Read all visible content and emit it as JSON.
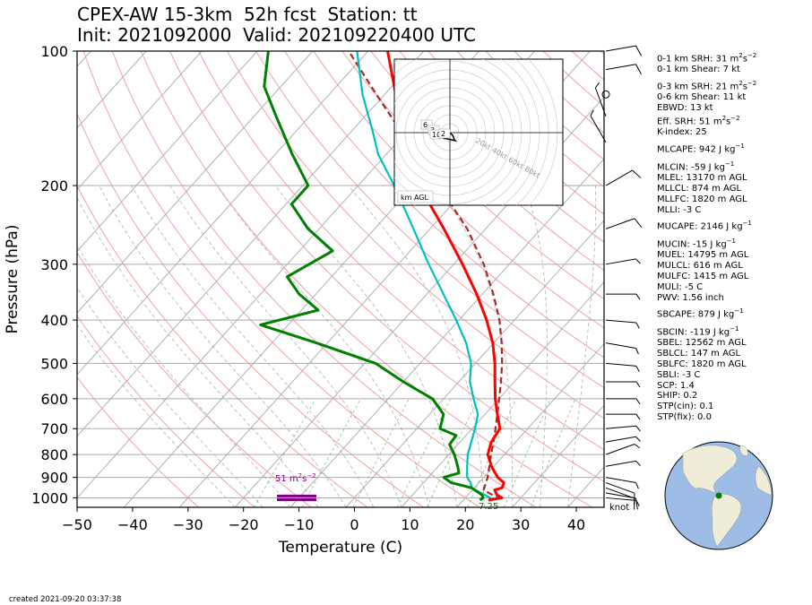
{
  "header": {
    "title_line1": "CPEX-AW 15-3km  52h fcst  Station: tt",
    "title_line2": "Init: 2021092000  Valid: 202109220400 UTC"
  },
  "footer": {
    "created": "created 2021-09-20 03:37:38"
  },
  "parameters": [
    {
      "label": "0-1 km SRH: 31 m",
      "sup": "2",
      "tail": "s",
      "sup2": "−2"
    },
    {
      "label": "0-1 km Shear: 7 kt"
    },
    {
      "label": "0-3 km SRH: 21 m",
      "sup": "2",
      "tail": "s",
      "sup2": "−2"
    },
    {
      "label": "0-6 km Shear: 11 kt"
    },
    {
      "label": "EBWD: 13 kt"
    },
    {
      "label": "Eff. SRH: 51 m",
      "sup": "2",
      "tail": "s",
      "sup2": "−2"
    },
    {
      "label": "K-index: 25"
    },
    {
      "label": "MLCAPE: 942 J kg",
      "sup": "−1"
    },
    {
      "label": "MLCIN: -59 J kg",
      "sup": "−1"
    },
    {
      "label": "MLEL: 13170 m AGL"
    },
    {
      "label": "MLLCL: 874 m AGL"
    },
    {
      "label": "MLLFC: 1820 m AGL"
    },
    {
      "label": "MLLI: -3 C"
    },
    {
      "label": "MUCAPE: 2146 J kg",
      "sup": "−1"
    },
    {
      "label": "MUCIN: -15 J kg",
      "sup": "−1"
    },
    {
      "label": "MUEL: 14795 m AGL"
    },
    {
      "label": "MULCL: 616 m AGL"
    },
    {
      "label": "MULFC: 1415 m AGL"
    },
    {
      "label": "MULI: -5 C"
    },
    {
      "label": "PWV: 1.56 inch"
    },
    {
      "label": "SBCAPE: 879 J kg",
      "sup": "−1"
    },
    {
      "label": "SBCIN: -119 J kg",
      "sup": "−1"
    },
    {
      "label": "SBEL: 12562 m AGL"
    },
    {
      "label": "SBLCL: 147 m AGL"
    },
    {
      "label": "SBLFC: 1820 m AGL"
    },
    {
      "label": "SBLI: -3 C"
    },
    {
      "label": "SCP: 1.4"
    },
    {
      "label": "SHIP: 0.2"
    },
    {
      "label": "STP(cin): 0.1"
    },
    {
      "label": "STP(fix): 0.0"
    }
  ],
  "chart_data": {
    "type": "line",
    "subtype": "skew-T log-P",
    "xlabel": "Temperature (C)",
    "ylabel": "Pressure (hPa)",
    "xlim": [
      -50,
      45
    ],
    "ylim": [
      1050,
      100
    ],
    "y_scale": "log",
    "xticks": [
      -50,
      -40,
      -30,
      -20,
      -10,
      0,
      10,
      20,
      30,
      40
    ],
    "yticks": [
      100,
      200,
      300,
      400,
      500,
      600,
      700,
      800,
      900,
      1000
    ],
    "grid": true,
    "colors": {
      "temperature": "#ff0000",
      "dewpoint": "#008000",
      "virtual": "#00bfbf",
      "parcel": "#a52a2a",
      "srh_bar": "#800080",
      "dry_adiabat": "#f4a0a0",
      "moist_adiabat": "#b0b0b0",
      "mixing_ratio": "#90d090",
      "isotherm": "#b0b0b0"
    },
    "series": [
      {
        "key": "temperature",
        "points": [
          [
            1012,
            24.5
          ],
          [
            1000,
            26.6
          ],
          [
            985,
            25.2
          ],
          [
            960,
            24.0
          ],
          [
            950,
            25.0
          ],
          [
            925,
            24.5
          ],
          [
            900,
            22.5
          ],
          [
            850,
            19.6
          ],
          [
            800,
            17.0
          ],
          [
            750,
            15.6
          ],
          [
            700,
            15.0
          ],
          [
            650,
            12.2
          ],
          [
            600,
            9.3
          ],
          [
            550,
            6.5
          ],
          [
            500,
            3.5
          ],
          [
            450,
            -0.2
          ],
          [
            400,
            -5.0
          ],
          [
            350,
            -11.0
          ],
          [
            300,
            -18.4
          ],
          [
            250,
            -27.5
          ],
          [
            200,
            -39.0
          ],
          [
            150,
            -51.0
          ],
          [
            125,
            -58.0
          ],
          [
            100,
            -66.5
          ]
        ]
      },
      {
        "key": "dewpoint",
        "points": [
          [
            1012,
            23.0
          ],
          [
            1000,
            23.2
          ],
          [
            985,
            22.5
          ],
          [
            950,
            19.5
          ],
          [
            925,
            15.0
          ],
          [
            900,
            12.8
          ],
          [
            880,
            14.8
          ],
          [
            850,
            13.5
          ],
          [
            800,
            11.0
          ],
          [
            760,
            8.5
          ],
          [
            725,
            8.2
          ],
          [
            700,
            4.2
          ],
          [
            650,
            2.5
          ],
          [
            600,
            -2.0
          ],
          [
            550,
            -10.0
          ],
          [
            500,
            -18.0
          ],
          [
            450,
            -32.0
          ],
          [
            410,
            -45.0
          ],
          [
            380,
            -37.0
          ],
          [
            350,
            -43.0
          ],
          [
            320,
            -48.0
          ],
          [
            280,
            -44.0
          ],
          [
            250,
            -52.0
          ],
          [
            220,
            -59.0
          ],
          [
            200,
            -59.0
          ],
          [
            170,
            -67.0
          ],
          [
            140,
            -76.0
          ],
          [
            120,
            -83.0
          ],
          [
            100,
            -88.0
          ]
        ]
      },
      {
        "key": "virtual",
        "points": [
          [
            1012,
            24.8
          ],
          [
            1000,
            24.5
          ],
          [
            985,
            23.0
          ],
          [
            950,
            19.5
          ],
          [
            925,
            18.5
          ],
          [
            900,
            17.0
          ],
          [
            850,
            15.2
          ],
          [
            800,
            13.4
          ],
          [
            750,
            12.0
          ],
          [
            700,
            10.5
          ],
          [
            650,
            8.7
          ],
          [
            600,
            5.4
          ],
          [
            550,
            2.0
          ],
          [
            500,
            -0.8
          ],
          [
            450,
            -5.0
          ],
          [
            400,
            -10.5
          ],
          [
            350,
            -17.0
          ],
          [
            300,
            -24.5
          ],
          [
            250,
            -33.0
          ],
          [
            200,
            -43.5
          ],
          [
            170,
            -51.5
          ],
          [
            150,
            -56.5
          ],
          [
            125,
            -64.0
          ],
          [
            100,
            -72.0
          ]
        ]
      },
      {
        "key": "parcel",
        "dashed": true,
        "points": [
          [
            1000,
            26.6
          ],
          [
            985,
            24.4
          ],
          [
            960,
            22.0
          ],
          [
            900,
            20.7
          ],
          [
            850,
            19.2
          ],
          [
            800,
            17.6
          ],
          [
            750,
            16.0
          ],
          [
            700,
            14.2
          ],
          [
            650,
            12.2
          ],
          [
            600,
            10.0
          ],
          [
            550,
            7.6
          ],
          [
            500,
            4.8
          ],
          [
            450,
            1.4
          ],
          [
            400,
            -2.7
          ],
          [
            350,
            -8.0
          ],
          [
            300,
            -14.6
          ],
          [
            250,
            -23.3
          ],
          [
            200,
            -35.5
          ],
          [
            150,
            -51.5
          ],
          [
            125,
            -61.5
          ],
          [
            100,
            -73.5
          ]
        ]
      }
    ],
    "annotations": {
      "srh_label": "51 m",
      "srh_label_sup": "2",
      "srh_label_tail": "s",
      "srh_label_sup2": "−2",
      "srh_bars_hpa": [
        924,
        1000
      ],
      "surface_label": "7.25",
      "wind_unit": "knot"
    },
    "wind_barbs": [
      {
        "p": 1000,
        "speed_kt": 6,
        "dir": 95
      },
      {
        "p": 975,
        "speed_kt": 10,
        "dir": 100
      },
      {
        "p": 950,
        "speed_kt": 12,
        "dir": 110
      },
      {
        "p": 925,
        "speed_kt": 10,
        "dir": 110
      },
      {
        "p": 900,
        "speed_kt": 8,
        "dir": 100
      },
      {
        "p": 850,
        "speed_kt": 7,
        "dir": 80
      },
      {
        "p": 800,
        "speed_kt": 5,
        "dir": 70
      },
      {
        "p": 750,
        "speed_kt": 9,
        "dir": 80
      },
      {
        "p": 700,
        "speed_kt": 8,
        "dir": 85
      },
      {
        "p": 650,
        "speed_kt": 8,
        "dir": 90
      },
      {
        "p": 600,
        "speed_kt": 7,
        "dir": 90
      },
      {
        "p": 550,
        "speed_kt": 7,
        "dir": 90
      },
      {
        "p": 500,
        "speed_kt": 7,
        "dir": 95
      },
      {
        "p": 450,
        "speed_kt": 8,
        "dir": 100
      },
      {
        "p": 400,
        "speed_kt": 8,
        "dir": 95
      },
      {
        "p": 350,
        "speed_kt": 8,
        "dir": 90
      },
      {
        "p": 300,
        "speed_kt": 9,
        "dir": 80
      },
      {
        "p": 250,
        "speed_kt": 10,
        "dir": 70
      },
      {
        "p": 200,
        "speed_kt": 10,
        "dir": 60
      },
      {
        "p": 160,
        "speed_kt": 8,
        "dir": 330
      },
      {
        "p": 140,
        "speed_kt": 6,
        "dir": 340
      },
      {
        "p": 125,
        "speed_kt": 0,
        "dir": 0
      },
      {
        "p": 110,
        "speed_kt": 10,
        "dir": 80
      },
      {
        "p": 100,
        "speed_kt": 10,
        "dir": 80
      }
    ],
    "hodograph": {
      "ring_labels": [
        "20kt",
        "40kt",
        "60kt",
        "80kt"
      ],
      "corner_label": "km AGL",
      "height_labels": [
        "6",
        "3",
        "10",
        "2"
      ],
      "points_kt": [
        [
          -5,
          -3
        ],
        [
          -3,
          -1
        ],
        [
          -1,
          0
        ],
        [
          1,
          1
        ],
        [
          3,
          3
        ],
        [
          4,
          5
        ],
        [
          5,
          8
        ],
        [
          6,
          9
        ],
        [
          2,
          8
        ],
        [
          -3,
          7
        ],
        [
          -7,
          6
        ],
        [
          -13,
          4
        ]
      ]
    },
    "locator_globe": {
      "marker_color": "#008000"
    }
  }
}
